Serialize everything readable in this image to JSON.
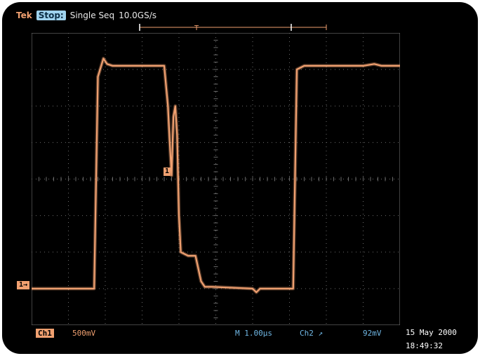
{
  "header": {
    "brand": "Tek",
    "status": "Stop:",
    "mode": "Single Seq",
    "sample_rate": "10.0GS/s"
  },
  "markers": {
    "channel_ground": "1→",
    "trigger_level": "1"
  },
  "footer": {
    "channel_label": "Ch1",
    "volts_per_div": "500mV",
    "timebase": "M 1.00µs",
    "trigger_source": "Ch2",
    "trigger_slope_symbol": "↗",
    "trigger_level_value": "92mV",
    "date": "15 May 2000",
    "time": "18:49:32"
  },
  "colors": {
    "trace": "#f0a070",
    "grid": "#6b6b6b",
    "background": "#000000",
    "status_highlight": "#9fd3ee",
    "info_text": "#70b8e6"
  },
  "chart_data": {
    "type": "line",
    "title": "",
    "xlabel": "",
    "ylabel": "",
    "x_units": "divisions",
    "y_units": "divisions",
    "xlim": [
      0,
      10
    ],
    "ylim": [
      -4,
      4
    ],
    "grid": true,
    "series": [
      {
        "x": [
          0,
          1.7,
          1.8,
          1.95,
          2.05,
          2.2,
          3.6,
          3.7,
          3.75,
          3.8,
          3.85,
          3.9,
          3.95,
          4.0,
          4.05,
          4.25,
          4.45,
          4.6,
          4.7,
          4.9,
          6.0,
          6.1,
          6.2,
          7.1,
          7.2,
          7.4,
          9.0,
          9.3,
          9.5,
          10.0
        ],
        "y": [
          -3.0,
          -3.0,
          2.8,
          3.3,
          3.15,
          3.1,
          3.1,
          2.0,
          1.0,
          0.1,
          1.7,
          2.0,
          1.2,
          -1.0,
          -2.0,
          -2.1,
          -2.1,
          -2.8,
          -2.95,
          -2.95,
          -3.0,
          -3.1,
          -3.0,
          -3.0,
          3.0,
          3.1,
          3.1,
          3.15,
          3.1,
          3.1
        ]
      }
    ]
  }
}
